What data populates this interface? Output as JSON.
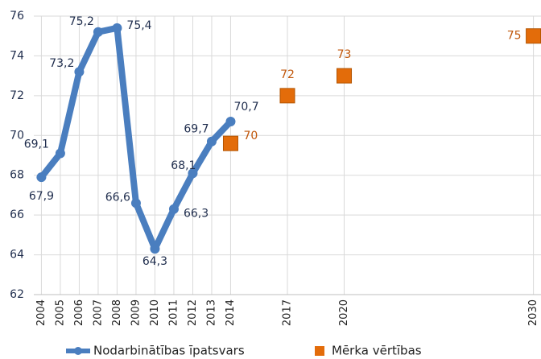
{
  "chart_data": {
    "type": "line",
    "x": [
      2004,
      2005,
      2006,
      2007,
      2008,
      2009,
      2010,
      2011,
      2012,
      2013,
      2014
    ],
    "series": [
      {
        "name": "Nodarbinātības īpatsvars",
        "color": "#4a7ebf",
        "x": [
          2004,
          2005,
          2006,
          2007,
          2008,
          2009,
          2010,
          2011,
          2012,
          2013,
          2014
        ],
        "values": [
          67.9,
          69.1,
          73.2,
          75.2,
          75.4,
          66.6,
          64.3,
          66.3,
          68.1,
          69.7,
          70.7
        ],
        "value_labels": [
          "67,9",
          "69,1",
          "73,2",
          "75,2",
          "75,4",
          "66,6",
          "64,3",
          "66,3",
          "68,1",
          "69,7",
          "70,7"
        ]
      },
      {
        "name": "Mērka vērtības",
        "color": "#e36c0a",
        "x": [
          2014,
          2017,
          2020,
          2030
        ],
        "values": [
          69.6,
          72,
          73,
          75
        ],
        "value_labels": [
          "70",
          "72",
          "73",
          "75"
        ]
      }
    ],
    "xlim": [
      2003.6,
      2030.4
    ],
    "xticks": [
      2004,
      2005,
      2006,
      2007,
      2008,
      2009,
      2010,
      2011,
      2012,
      2013,
      2014,
      2017,
      2020,
      2030
    ],
    "ylim": [
      62,
      76
    ],
    "yticks": [
      62,
      64,
      66,
      68,
      70,
      72,
      74,
      76
    ],
    "grid": true
  }
}
